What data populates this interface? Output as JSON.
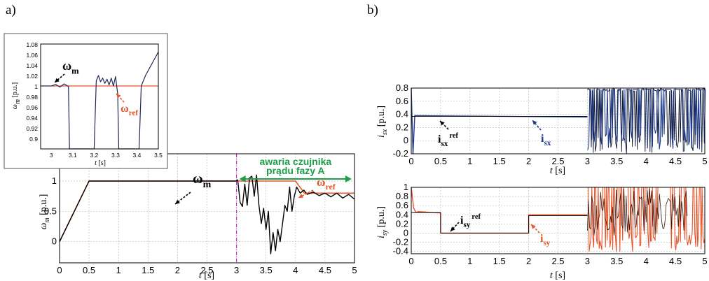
{
  "panels": {
    "a_label": "a)",
    "b_label": "b)"
  },
  "colors": {
    "measured": "#000000",
    "ref": "#e8542a",
    "isx": "#1f3a8a",
    "isy": "#e8542a",
    "fault": "#1e9e4a",
    "fault_line": "#c22fc2",
    "grid": "#c0c0c0"
  },
  "chart_data": [
    {
      "id": "main",
      "type": "line",
      "title": "",
      "xlabel": "t [s]",
      "ylabel": "ω_m [p.u.]",
      "xlim": [
        0,
        5
      ],
      "ylim": [
        -0.35,
        1.45
      ],
      "xticks": [
        "0",
        "0.5",
        "1",
        "1.5",
        "2",
        "2.5",
        "3",
        "3.5",
        "4",
        "4.5",
        "5"
      ],
      "yticks": [
        "0",
        "0.5",
        "1"
      ],
      "grid": true,
      "series": [
        {
          "name": "ω_m",
          "color": "#000000",
          "x": [
            0,
            0.5,
            3.0,
            3.02,
            3.06,
            3.1,
            3.14,
            3.18,
            3.22,
            3.26,
            3.3,
            3.34,
            3.38,
            3.42,
            3.46,
            3.5,
            3.54,
            3.58,
            3.62,
            3.66,
            3.7,
            3.74,
            3.78,
            3.82,
            3.86,
            3.9,
            3.94,
            3.98,
            4.02,
            4.08,
            4.14,
            4.2,
            4.3,
            4.4,
            4.5,
            4.6,
            4.7,
            4.8,
            4.9,
            5.0
          ],
          "y": [
            0,
            1.0,
            1.0,
            1.02,
            0.65,
            0.58,
            0.95,
            0.6,
            1.05,
            1.08,
            0.75,
            1.1,
            0.6,
            0.3,
            0.55,
            0.2,
            0.5,
            -0.2,
            0.15,
            -0.15,
            0.2,
            0.0,
            0.3,
            0.6,
            0.5,
            0.9,
            0.5,
            0.75,
            0.9,
            0.8,
            0.85,
            0.78,
            0.82,
            0.76,
            0.8,
            0.74,
            0.8,
            0.72,
            0.78,
            0.7
          ]
        },
        {
          "name": "ω_ref",
          "color": "#e8542a",
          "x": [
            0,
            0.5,
            4.0,
            4.15,
            5.0
          ],
          "y": [
            0,
            1.0,
            1.0,
            0.8,
            0.8
          ]
        }
      ],
      "annotations": [
        {
          "text": "ω",
          "sub": "m"
        },
        {
          "text": "ω",
          "sub": "ref"
        },
        {
          "text": "awaria czujnika"
        },
        {
          "text": "prądu fazy A"
        }
      ],
      "fault_time": 3.0
    },
    {
      "id": "inset",
      "type": "line",
      "xlabel": "t [s]",
      "ylabel": "ω_m [p.u.]",
      "xlim": [
        2.95,
        3.5
      ],
      "ylim": [
        0.88,
        1.08
      ],
      "xticks": [
        "3",
        "3.1",
        "3.2",
        "3.3",
        "3.4",
        "3.5"
      ],
      "yticks": [
        "0.9",
        "0.92",
        "0.94",
        "0.96",
        "0.98",
        "1",
        "1.02",
        "1.04",
        "1.06",
        "1.08"
      ],
      "grid": false,
      "series": [
        {
          "name": "ω_m",
          "color": "#1f2a5a",
          "x": [
            2.95,
            3.0,
            3.02,
            3.04,
            3.06,
            3.08,
            3.085,
            3.15,
            3.2,
            3.21,
            3.22,
            3.23,
            3.24,
            3.25,
            3.26,
            3.27,
            3.28,
            3.29,
            3.3,
            3.31,
            3.315,
            3.32,
            3.33,
            3.34,
            3.41,
            3.42,
            3.44,
            3.46,
            3.48,
            3.5
          ],
          "y": [
            1.0,
            1.0,
            1.003,
            0.998,
            1.004,
            0.999,
            0.88,
            0.88,
            0.88,
            1.01,
            1.02,
            1.008,
            1.015,
            1.005,
            1.013,
            1.002,
            1.015,
            1.0,
            1.018,
            0.985,
            0.88,
            0.88,
            0.88,
            0.88,
            0.88,
            1.0,
            1.02,
            1.035,
            1.05,
            1.065
          ]
        },
        {
          "name": "ω_ref",
          "color": "#e8542a",
          "x": [
            3.0,
            3.5
          ],
          "y": [
            1.0,
            1.0
          ]
        }
      ],
      "annotations": [
        {
          "text": "ω",
          "sub": "m"
        },
        {
          "text": "ω",
          "sub": "ref"
        }
      ]
    },
    {
      "id": "isx",
      "type": "line",
      "xlabel": "t [s]",
      "ylabel": "i_sx [p.u.]",
      "xlim": [
        0,
        5
      ],
      "ylim": [
        -0.2,
        0.8
      ],
      "xticks": [
        "0",
        "0.5",
        "1",
        "1.5",
        "2",
        "2.5",
        "3",
        "3.5",
        "4",
        "4.5",
        "5"
      ],
      "yticks": [
        "-0.2",
        "0",
        "0.2",
        "0.4",
        "0.6",
        "0.8"
      ],
      "grid": true,
      "series": [
        {
          "name": "i_sx",
          "color": "#1f3a8a",
          "x": [
            0,
            0.03,
            0.06,
            3.0
          ],
          "y": [
            0.8,
            -0.2,
            0.38,
            0.36
          ]
        },
        {
          "name": "i_sx ref",
          "color": "#000000",
          "x": [
            0,
            3.0
          ],
          "y": [
            0.37,
            0.37
          ]
        }
      ],
      "noise_region": [
        3.0,
        5.0
      ],
      "annotations": [
        {
          "text": "i",
          "sub": "sx",
          "sup": "ref"
        },
        {
          "text": "i",
          "sub": "sx"
        }
      ]
    },
    {
      "id": "isy",
      "type": "line",
      "xlabel": "t [s]",
      "ylabel": "i_sy [p.u.]",
      "xlim": [
        0,
        5
      ],
      "ylim": [
        -0.45,
        1.0
      ],
      "xticks": [
        "0",
        "0.5",
        "1",
        "1.5",
        "2",
        "2.5",
        "3",
        "3.5",
        "4",
        "4.5",
        "5"
      ],
      "yticks": [
        "-0.4",
        "-0.2",
        "0",
        "0.2",
        "0.4",
        "0.6",
        "0.8",
        "1"
      ],
      "grid": true,
      "series": [
        {
          "name": "i_sy",
          "color": "#e8542a",
          "x": [
            0,
            0.04,
            0.08,
            0.12,
            0.5,
            0.5,
            2.0,
            2.0,
            3.0
          ],
          "y": [
            1.0,
            0.55,
            0.45,
            0.47,
            0.44,
            0.0,
            0.0,
            0.4,
            0.4
          ]
        },
        {
          "name": "i_sy ref",
          "color": "#000000",
          "x": [
            0,
            0.5,
            0.5,
            2.0,
            2.0,
            3.0
          ],
          "y": [
            0.45,
            0.45,
            0.0,
            0.0,
            0.38,
            0.38
          ]
        }
      ],
      "noise_region": [
        3.0,
        5.0
      ],
      "annotations": [
        {
          "text": "i",
          "sub": "sy",
          "sup": "ref"
        },
        {
          "text": "i",
          "sub": "sy"
        }
      ]
    }
  ]
}
